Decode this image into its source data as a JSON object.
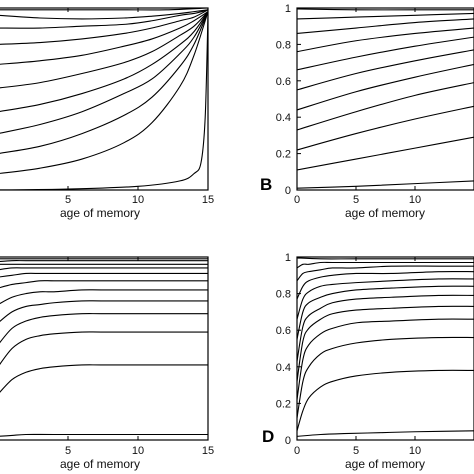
{
  "chart_data": [
    {
      "type": "line",
      "panel": "A",
      "letter": "",
      "xlabel": "age of memory",
      "ylabel": "",
      "xlim": [
        0,
        15
      ],
      "ylim": [
        0,
        1
      ],
      "xticks": [
        5,
        10,
        15
      ],
      "yticks": [],
      "series": [
        {
          "x": [
            0,
            5,
            10,
            13,
            14,
            14.5,
            14.8,
            15
          ],
          "values": [
            0.0,
            0.005,
            0.02,
            0.05,
            0.09,
            0.15,
            0.4,
            0.97
          ]
        },
        {
          "x": [
            0,
            3,
            6,
            9,
            11,
            13,
            14,
            15
          ],
          "values": [
            0.09,
            0.12,
            0.17,
            0.26,
            0.37,
            0.57,
            0.74,
            0.98
          ]
        },
        {
          "x": [
            0,
            3,
            6,
            9,
            11,
            13,
            14,
            15
          ],
          "values": [
            0.2,
            0.24,
            0.31,
            0.41,
            0.51,
            0.68,
            0.8,
            0.98
          ]
        },
        {
          "x": [
            0,
            3,
            6,
            9,
            11,
            13,
            14,
            15
          ],
          "values": [
            0.31,
            0.36,
            0.43,
            0.53,
            0.61,
            0.75,
            0.84,
            0.98
          ]
        },
        {
          "x": [
            0,
            3,
            6,
            9,
            11,
            13,
            14,
            15
          ],
          "values": [
            0.43,
            0.47,
            0.53,
            0.61,
            0.69,
            0.8,
            0.87,
            0.98
          ]
        },
        {
          "x": [
            0,
            3,
            6,
            9,
            11,
            13,
            14,
            15
          ],
          "values": [
            0.56,
            0.59,
            0.64,
            0.7,
            0.76,
            0.85,
            0.9,
            0.98
          ]
        },
        {
          "x": [
            0,
            3,
            6,
            9,
            11,
            13,
            14,
            15
          ],
          "values": [
            0.69,
            0.71,
            0.74,
            0.79,
            0.83,
            0.89,
            0.93,
            0.98
          ]
        },
        {
          "x": [
            0,
            3,
            6,
            9,
            11,
            13,
            14,
            15
          ],
          "values": [
            0.8,
            0.81,
            0.83,
            0.86,
            0.89,
            0.93,
            0.95,
            0.99
          ]
        },
        {
          "x": [
            0,
            3,
            6,
            9,
            11,
            13,
            14,
            15
          ],
          "values": [
            0.89,
            0.89,
            0.9,
            0.91,
            0.93,
            0.96,
            0.97,
            0.99
          ]
        },
        {
          "x": [
            0,
            3,
            6,
            9,
            11,
            13,
            14,
            15
          ],
          "values": [
            0.96,
            0.945,
            0.94,
            0.945,
            0.955,
            0.97,
            0.98,
            0.99
          ]
        },
        {
          "x": [
            0,
            3,
            6,
            9,
            12,
            15
          ],
          "values": [
            0.99,
            0.99,
            0.99,
            0.99,
            0.99,
            1.0
          ]
        }
      ]
    },
    {
      "type": "line",
      "panel": "B",
      "letter": "B",
      "xlabel": "age of memory",
      "ylabel": "",
      "xlim": [
        0,
        15
      ],
      "ylim": [
        0,
        1
      ],
      "xticks": [
        0,
        5,
        10
      ],
      "yticks": [
        0,
        0.2,
        0.4,
        0.6,
        0.8,
        1
      ],
      "ytick_labels": [
        "0",
        "0.2",
        "0.4",
        "0.6",
        "0.8",
        "1"
      ],
      "series": [
        {
          "x": [
            0,
            5,
            10,
            15
          ],
          "values": [
            0.01,
            0.02,
            0.035,
            0.05
          ]
        },
        {
          "x": [
            0,
            5,
            10,
            15
          ],
          "values": [
            0.11,
            0.17,
            0.23,
            0.29
          ]
        },
        {
          "x": [
            0,
            5,
            10,
            15
          ],
          "values": [
            0.22,
            0.31,
            0.39,
            0.46
          ]
        },
        {
          "x": [
            0,
            5,
            10,
            15
          ],
          "values": [
            0.33,
            0.43,
            0.52,
            0.59
          ]
        },
        {
          "x": [
            0,
            5,
            10,
            15
          ],
          "values": [
            0.44,
            0.54,
            0.62,
            0.69
          ]
        },
        {
          "x": [
            0,
            5,
            10,
            15
          ],
          "values": [
            0.55,
            0.64,
            0.71,
            0.77
          ]
        },
        {
          "x": [
            0,
            5,
            10,
            15
          ],
          "values": [
            0.66,
            0.73,
            0.79,
            0.84
          ]
        },
        {
          "x": [
            0,
            5,
            10,
            15
          ],
          "values": [
            0.76,
            0.82,
            0.86,
            0.89
          ]
        },
        {
          "x": [
            0,
            5,
            10,
            15
          ],
          "values": [
            0.86,
            0.89,
            0.92,
            0.94
          ]
        },
        {
          "x": [
            0,
            5,
            10,
            15
          ],
          "values": [
            0.94,
            0.95,
            0.96,
            0.97
          ]
        },
        {
          "x": [
            0,
            5,
            10,
            15
          ],
          "values": [
            0.995,
            0.99,
            0.99,
            0.99
          ]
        }
      ]
    },
    {
      "type": "line",
      "panel": "C",
      "letter": "",
      "xlabel": "age of memory",
      "ylabel": "",
      "xlim": [
        0,
        15
      ],
      "ylim": [
        0,
        1
      ],
      "xticks": [
        5,
        10,
        15
      ],
      "yticks": [],
      "series": [
        {
          "x": [
            0,
            1,
            2,
            4,
            8,
            15
          ],
          "values": [
            0.02,
            0.025,
            0.03,
            0.03,
            0.03,
            0.03
          ]
        },
        {
          "x": [
            0,
            1,
            2,
            3,
            4,
            6,
            8,
            15
          ],
          "values": [
            0.25,
            0.33,
            0.37,
            0.39,
            0.4,
            0.41,
            0.41,
            0.41
          ]
        },
        {
          "x": [
            0,
            1,
            2,
            3,
            4,
            6,
            8,
            15
          ],
          "values": [
            0.4,
            0.5,
            0.55,
            0.57,
            0.58,
            0.59,
            0.59,
            0.59
          ]
        },
        {
          "x": [
            0,
            1,
            2,
            3,
            4,
            6,
            8,
            15
          ],
          "values": [
            0.52,
            0.61,
            0.65,
            0.67,
            0.68,
            0.69,
            0.69,
            0.69
          ]
        },
        {
          "x": [
            0,
            1,
            2,
            3,
            4,
            6,
            8,
            15
          ],
          "values": [
            0.64,
            0.7,
            0.73,
            0.74,
            0.75,
            0.76,
            0.76,
            0.76
          ]
        },
        {
          "x": [
            0,
            1,
            2,
            3,
            4,
            6,
            8,
            15
          ],
          "values": [
            0.74,
            0.78,
            0.8,
            0.81,
            0.81,
            0.82,
            0.82,
            0.82
          ]
        },
        {
          "x": [
            0,
            1,
            2,
            3,
            4,
            6,
            8,
            15
          ],
          "values": [
            0.83,
            0.85,
            0.86,
            0.87,
            0.87,
            0.87,
            0.87,
            0.87
          ]
        },
        {
          "x": [
            0,
            1,
            2,
            3,
            4,
            6,
            8,
            15
          ],
          "values": [
            0.89,
            0.9,
            0.91,
            0.91,
            0.91,
            0.91,
            0.91,
            0.91
          ]
        },
        {
          "x": [
            0,
            1,
            2,
            3,
            4,
            6,
            8,
            15
          ],
          "values": [
            0.93,
            0.94,
            0.94,
            0.94,
            0.94,
            0.94,
            0.94,
            0.94
          ]
        },
        {
          "x": [
            0,
            1,
            2,
            4,
            8,
            15
          ],
          "values": [
            0.96,
            0.96,
            0.96,
            0.96,
            0.96,
            0.96
          ]
        },
        {
          "x": [
            0,
            1,
            2,
            4,
            8,
            15
          ],
          "values": [
            0.975,
            0.98,
            0.98,
            0.98,
            0.98,
            0.98
          ]
        },
        {
          "x": [
            0,
            1,
            2,
            4,
            8,
            15
          ],
          "values": [
            0.99,
            0.99,
            0.99,
            0.99,
            0.99,
            0.99
          ]
        }
      ]
    },
    {
      "type": "line",
      "panel": "D",
      "letter": "D",
      "xlabel": "age of memory",
      "ylabel": "",
      "xlim": [
        0,
        15
      ],
      "ylim": [
        0,
        1
      ],
      "xticks": [
        0,
        5,
        10
      ],
      "yticks": [
        0,
        0.2,
        0.4,
        0.6,
        0.8,
        1
      ],
      "ytick_labels": [
        "0",
        "0.2",
        "0.4",
        "0.6",
        "0.8",
        "1"
      ],
      "series": [
        {
          "x": [
            0,
            2,
            4,
            7,
            10,
            15
          ],
          "values": [
            0.02,
            0.03,
            0.035,
            0.04,
            0.045,
            0.05
          ]
        },
        {
          "x": [
            0,
            0.5,
            1,
            2,
            3,
            5,
            8,
            12,
            15
          ],
          "values": [
            0.05,
            0.16,
            0.23,
            0.29,
            0.32,
            0.35,
            0.37,
            0.38,
            0.38
          ]
        },
        {
          "x": [
            0,
            0.5,
            1,
            2,
            3,
            5,
            8,
            12,
            15
          ],
          "values": [
            0.12,
            0.32,
            0.4,
            0.47,
            0.5,
            0.53,
            0.55,
            0.56,
            0.56
          ]
        },
        {
          "x": [
            0,
            0.5,
            1,
            2,
            3,
            5,
            8,
            12,
            15
          ],
          "values": [
            0.22,
            0.44,
            0.52,
            0.58,
            0.61,
            0.64,
            0.65,
            0.66,
            0.66
          ]
        },
        {
          "x": [
            0,
            0.5,
            1,
            2,
            3,
            5,
            8,
            12,
            15
          ],
          "values": [
            0.32,
            0.54,
            0.61,
            0.66,
            0.69,
            0.71,
            0.72,
            0.73,
            0.73
          ]
        },
        {
          "x": [
            0,
            0.5,
            1,
            2,
            3,
            5,
            8,
            12,
            15
          ],
          "values": [
            0.43,
            0.62,
            0.68,
            0.72,
            0.75,
            0.77,
            0.78,
            0.79,
            0.79
          ]
        },
        {
          "x": [
            0,
            0.5,
            1,
            2,
            3,
            5,
            8,
            12,
            15
          ],
          "values": [
            0.55,
            0.7,
            0.75,
            0.78,
            0.8,
            0.82,
            0.83,
            0.84,
            0.84
          ]
        },
        {
          "x": [
            0,
            0.5,
            1,
            2,
            3,
            5,
            8,
            12,
            15
          ],
          "values": [
            0.66,
            0.77,
            0.81,
            0.84,
            0.85,
            0.86,
            0.87,
            0.88,
            0.88
          ]
        },
        {
          "x": [
            0,
            0.5,
            1,
            2,
            3,
            5,
            8,
            12,
            15
          ],
          "values": [
            0.77,
            0.84,
            0.87,
            0.89,
            0.9,
            0.91,
            0.91,
            0.92,
            0.92
          ]
        },
        {
          "x": [
            0,
            0.5,
            1,
            2,
            3,
            5,
            8,
            12,
            15
          ],
          "values": [
            0.87,
            0.91,
            0.92,
            0.93,
            0.94,
            0.94,
            0.95,
            0.95,
            0.95
          ]
        },
        {
          "x": [
            0,
            0.5,
            1,
            2,
            3,
            5,
            8,
            12,
            15
          ],
          "values": [
            0.94,
            0.96,
            0.96,
            0.97,
            0.97,
            0.97,
            0.97,
            0.97,
            0.97
          ]
        },
        {
          "x": [
            0,
            2,
            5,
            10,
            15
          ],
          "values": [
            0.995,
            0.99,
            0.99,
            0.99,
            0.99
          ]
        }
      ]
    }
  ]
}
